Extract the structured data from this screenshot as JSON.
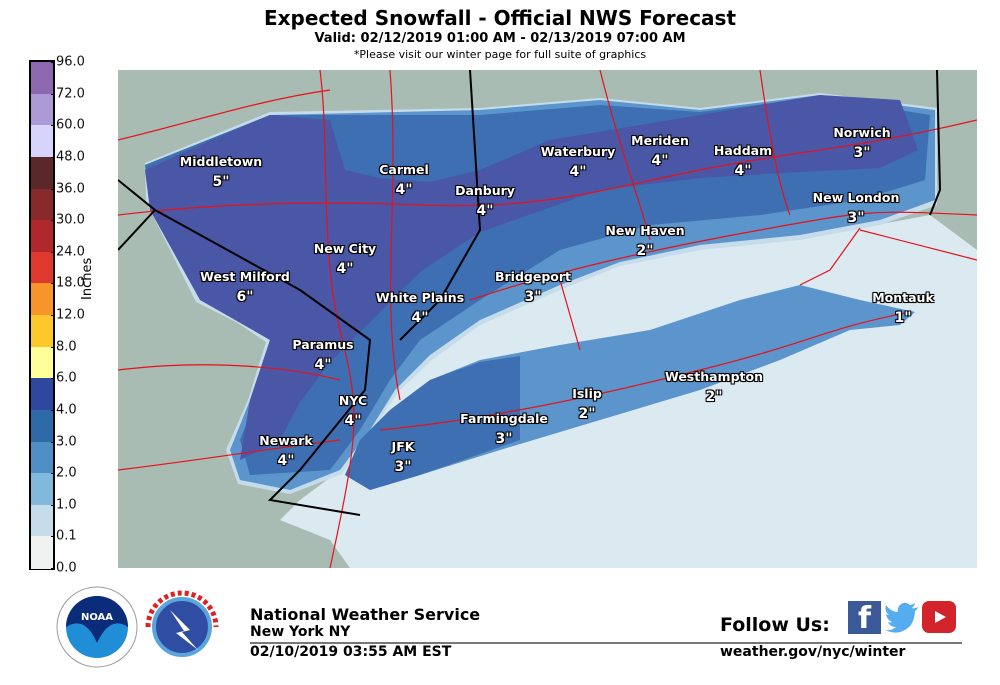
{
  "header": {
    "title": "Expected Snowfall - Official NWS Forecast",
    "valid": "Valid: 02/12/2019 01:00 AM - 02/13/2019 07:00 AM",
    "note": "*Please visit our winter page for full suite of graphics"
  },
  "colorbar": {
    "unit": "Inches",
    "ticks": [
      "96.0",
      "72.0",
      "60.0",
      "48.0",
      "36.0",
      "30.0",
      "24.0",
      "18.0",
      "12.0",
      "8.0",
      "6.0",
      "4.0",
      "3.0",
      "2.0",
      "1.0",
      "0.1",
      "0.0"
    ],
    "colors": [
      "#8e68ae",
      "#ab9ad6",
      "#d6d4fb",
      "#5a2829",
      "#882a2b",
      "#b0282c",
      "#e0382d",
      "#f7952a",
      "#fdc82c",
      "#fefe9a",
      "#2f479f",
      "#2e6aa8",
      "#4f8fc6",
      "#83b8dd",
      "#c6dceb",
      "#f0f2f2"
    ]
  },
  "map": {
    "colors": {
      "land": "#a8bcb4",
      "water": "#dbe9f1",
      "band_0_1_1": "#c6dceb",
      "band_1_2": "#83b8dd",
      "band_2_3": "#5b95cb",
      "band_3_4": "#3d6fb2",
      "band_4_6": "#4a57a6",
      "roads": "#e8101a",
      "borders": "#000000"
    },
    "cities": [
      {
        "name": "Middletown",
        "amount": "5\""
      },
      {
        "name": "Carmel",
        "amount": "4\""
      },
      {
        "name": "Danbury",
        "amount": "4\""
      },
      {
        "name": "Waterbury",
        "amount": "4\""
      },
      {
        "name": "Meriden",
        "amount": "4\""
      },
      {
        "name": "Haddam",
        "amount": "4\""
      },
      {
        "name": "Norwich",
        "amount": "3\""
      },
      {
        "name": "New London",
        "amount": "3\""
      },
      {
        "name": "New Haven",
        "amount": "2\""
      },
      {
        "name": "New City",
        "amount": "4\""
      },
      {
        "name": "West Milford",
        "amount": "6\""
      },
      {
        "name": "Bridgeport",
        "amount": "3\""
      },
      {
        "name": "White Plains",
        "amount": "4\""
      },
      {
        "name": "Montauk",
        "amount": "1\""
      },
      {
        "name": "Paramus",
        "amount": "4\""
      },
      {
        "name": "Westhampton",
        "amount": "2\""
      },
      {
        "name": "Islip",
        "amount": "2\""
      },
      {
        "name": "NYC",
        "amount": "4\""
      },
      {
        "name": "Farmingdale",
        "amount": "3\""
      },
      {
        "name": "Newark",
        "amount": "4\""
      },
      {
        "name": "JFK",
        "amount": "3\""
      }
    ]
  },
  "footer": {
    "org": "National Weather Service",
    "office": "New York NY",
    "issued": "02/10/2019 03:55 AM EST",
    "follow": "Follow Us:",
    "url": "weather.gov/nyc/winter",
    "logos": [
      "NOAA",
      "NATIONAL WEATHER SERVICE"
    ],
    "social_icons": [
      "facebook-icon",
      "twitter-icon",
      "youtube-icon"
    ]
  }
}
